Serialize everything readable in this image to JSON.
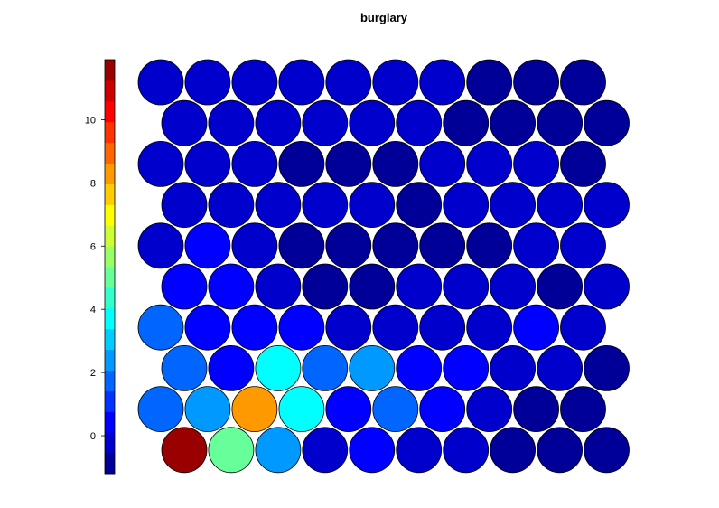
{
  "chart_data": {
    "type": "heatmap",
    "subtype": "som-hexagonal-grid",
    "title": "burglary",
    "grid": {
      "rows": 10,
      "cols": 10
    },
    "colormap": "jet",
    "colorbar": {
      "min": -1.2,
      "max": 11.9,
      "ticks": [
        0,
        2,
        4,
        6,
        8,
        10
      ],
      "tick_labels": [
        "0",
        "2",
        "4",
        "6",
        "8",
        "10"
      ],
      "levels": 20,
      "placement": "left"
    },
    "values": [
      [
        -0.1,
        -0.5,
        -0.2,
        -0.2,
        -0.5,
        -0.5,
        -0.5,
        -1.0,
        -1.0,
        -0.8
      ],
      [
        -0.2,
        -0.2,
        -0.2,
        -0.5,
        -0.5,
        -0.4,
        -0.9,
        -0.9,
        -0.9,
        -0.9
      ],
      [
        -0.2,
        -0.2,
        -0.2,
        -0.6,
        -0.6,
        -0.6,
        0.1,
        -0.5,
        -0.4,
        -1.0
      ],
      [
        -0.3,
        -0.2,
        -0.2,
        -0.2,
        0.0,
        -1.0,
        -0.5,
        -0.5,
        -0.5,
        -0.3
      ],
      [
        -0.2,
        0.6,
        -0.2,
        -0.6,
        -0.6,
        -0.6,
        -0.6,
        -0.6,
        -0.5,
        -0.4
      ],
      [
        0.6,
        0.6,
        -0.1,
        -0.6,
        -0.6,
        0.0,
        -0.5,
        -0.1,
        -0.6,
        -0.5
      ],
      [
        1.7,
        0.6,
        0.6,
        0.6,
        0.0,
        0.0,
        -0.1,
        -0.1,
        0.6,
        -0.1
      ],
      [
        1.7,
        0.6,
        3.5,
        1.9,
        2.4,
        0.6,
        0.6,
        0.0,
        -0.1,
        -0.6
      ],
      [
        1.7,
        2.4,
        8.0,
        3.6,
        0.6,
        1.7,
        0.6,
        -0.2,
        -0.6,
        -0.6
      ],
      [
        11.8,
        5.0,
        2.4,
        -0.2,
        0.6,
        -0.2,
        -0.2,
        -0.6,
        -0.6,
        -0.9
      ]
    ]
  }
}
